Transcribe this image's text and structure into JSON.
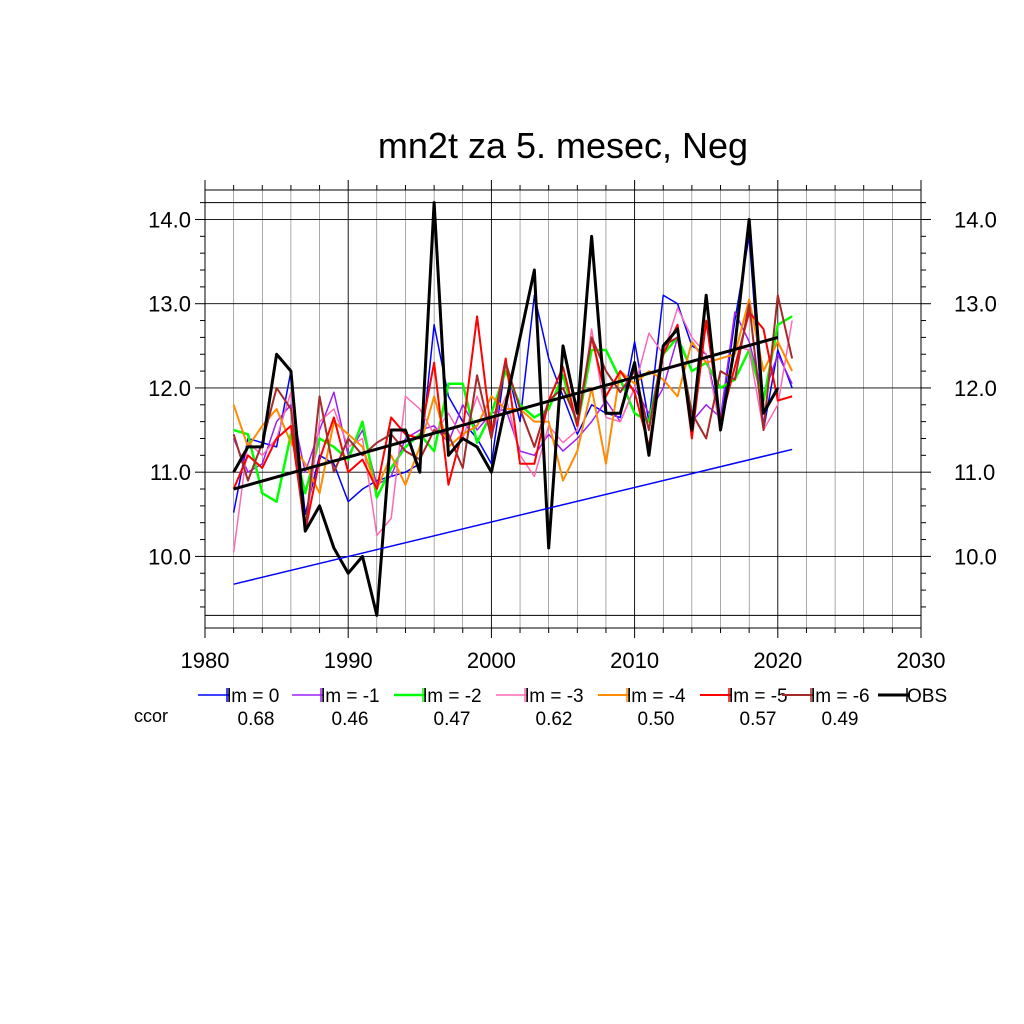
{
  "chart_data": {
    "type": "line",
    "title": "mn2t za 5. mesec, Neg",
    "xlabel": "",
    "ylabel": "",
    "xlim": [
      1980,
      2030
    ],
    "ylim": [
      9.3,
      14.2
    ],
    "x_ticks": [
      1980,
      1990,
      2000,
      2010,
      2020,
      2030
    ],
    "y_ticks": [
      10.0,
      11.0,
      12.0,
      13.0,
      14.0
    ],
    "y_tick_labels": [
      "10.0",
      "11.0",
      "12.0",
      "13.0",
      "14.0"
    ],
    "grid": true,
    "legend_position": "bottom",
    "ccor_label": "ccor",
    "years": [
      1982,
      1983,
      1984,
      1985,
      1986,
      1987,
      1988,
      1989,
      1990,
      1991,
      1992,
      1993,
      1994,
      1995,
      1996,
      1997,
      1998,
      1999,
      2000,
      2001,
      2002,
      2003,
      2004,
      2005,
      2006,
      2007,
      2008,
      2009,
      2010,
      2011,
      2012,
      2013,
      2014,
      2015,
      2016,
      2017,
      2018,
      2019,
      2020,
      2021
    ],
    "series": [
      {
        "name": "lm = 0",
        "color": "#0000ff",
        "width": 1.5,
        "ccor": "0.68",
        "values": [
          10.52,
          11.4,
          11.35,
          11.3,
          12.2,
          10.5,
          11.2,
          11.1,
          10.65,
          10.8,
          10.9,
          10.95,
          11.0,
          11.1,
          12.75,
          11.9,
          11.6,
          11.4,
          11.1,
          12.3,
          11.6,
          13.1,
          12.35,
          11.9,
          11.45,
          11.8,
          11.7,
          11.65,
          12.55,
          11.6,
          13.1,
          13.0,
          12.5,
          12.4,
          11.6,
          12.8,
          13.8,
          11.5,
          12.45,
          12.0
        ]
      },
      {
        "name": "lm = -1",
        "color": "#a020f0",
        "width": 1.5,
        "ccor": "0.46",
        "values": [
          11.4,
          11.0,
          11.1,
          11.6,
          11.8,
          11.0,
          11.5,
          11.95,
          11.2,
          11.5,
          10.85,
          10.95,
          11.4,
          11.5,
          11.55,
          11.35,
          11.8,
          11.5,
          11.7,
          11.75,
          11.25,
          11.2,
          11.45,
          11.25,
          11.4,
          11.6,
          11.85,
          11.6,
          12.0,
          11.7,
          12.0,
          12.6,
          11.6,
          11.8,
          11.65,
          12.9,
          12.55,
          11.9,
          12.4,
          12.05
        ]
      },
      {
        "name": "lm = -2",
        "color": "#00ff00",
        "width": 2.5,
        "ccor": "0.47",
        "values": [
          11.5,
          11.45,
          10.75,
          10.65,
          11.45,
          10.75,
          11.4,
          11.3,
          11.15,
          11.6,
          10.7,
          11.05,
          11.3,
          11.45,
          11.25,
          12.05,
          12.05,
          11.35,
          11.7,
          12.2,
          11.8,
          11.65,
          11.75,
          12.15,
          11.55,
          12.45,
          12.45,
          12.1,
          11.7,
          11.6,
          12.4,
          12.6,
          12.2,
          12.3,
          12.0,
          12.1,
          12.45,
          11.85,
          12.75,
          12.85
        ]
      },
      {
        "name": "lm = -3",
        "color": "#ff69b4",
        "width": 1.5,
        "ccor": "0.62",
        "values": [
          10.05,
          11.35,
          11.2,
          11.4,
          11.95,
          10.3,
          11.6,
          11.75,
          11.3,
          11.4,
          10.25,
          10.45,
          11.9,
          11.75,
          11.45,
          11.7,
          11.4,
          11.9,
          11.45,
          11.9,
          11.2,
          10.95,
          11.55,
          11.35,
          11.5,
          12.7,
          11.65,
          11.6,
          12.0,
          12.65,
          12.4,
          12.95,
          12.6,
          12.4,
          11.5,
          12.5,
          12.45,
          11.5,
          11.8,
          12.8
        ]
      },
      {
        "name": "lm = -4",
        "color": "#ff8c00",
        "width": 2,
        "ccor": "0.50",
        "values": [
          11.8,
          11.3,
          11.55,
          11.75,
          11.35,
          11.1,
          10.75,
          11.6,
          11.45,
          11.3,
          10.8,
          11.2,
          10.85,
          11.3,
          11.9,
          11.3,
          11.45,
          11.55,
          11.9,
          11.75,
          11.75,
          11.6,
          11.6,
          10.9,
          11.25,
          12.0,
          11.1,
          12.2,
          12.05,
          12.2,
          12.1,
          11.9,
          12.55,
          12.3,
          12.35,
          12.4,
          13.05,
          12.2,
          12.55,
          12.2
        ]
      },
      {
        "name": "lm = -5",
        "color": "#ff0000",
        "width": 2,
        "ccor": "0.57",
        "values": [
          10.8,
          11.2,
          11.05,
          11.4,
          11.55,
          10.3,
          11.15,
          11.65,
          11.0,
          11.15,
          10.8,
          11.65,
          11.45,
          11.4,
          12.3,
          10.85,
          11.5,
          12.85,
          11.45,
          12.35,
          11.1,
          11.1,
          11.85,
          12.25,
          11.55,
          12.6,
          11.9,
          12.2,
          11.95,
          11.3,
          12.4,
          12.75,
          11.4,
          12.8,
          11.6,
          12.25,
          12.9,
          12.7,
          11.85,
          11.9
        ]
      },
      {
        "name": "lm = -6",
        "color": "#a52a2a",
        "width": 2,
        "ccor": "0.49",
        "values": [
          11.45,
          10.9,
          11.35,
          12.0,
          11.75,
          10.3,
          11.9,
          11.0,
          11.4,
          11.2,
          11.35,
          11.45,
          11.25,
          11.15,
          11.5,
          11.45,
          11.05,
          12.15,
          11.4,
          12.3,
          11.75,
          11.3,
          11.85,
          12.0,
          11.6,
          12.6,
          12.2,
          11.95,
          12.2,
          11.5,
          12.5,
          12.6,
          11.7,
          11.4,
          12.2,
          12.1,
          13.0,
          11.5,
          13.1,
          12.35
        ]
      },
      {
        "name": "OBS",
        "color": "#000000",
        "width": 3,
        "ccor": "",
        "values": [
          11.0,
          11.3,
          11.3,
          12.4,
          12.2,
          10.3,
          10.6,
          10.1,
          9.8,
          10.0,
          9.3,
          11.5,
          11.5,
          11.0,
          14.2,
          11.2,
          11.4,
          11.3,
          11.0,
          11.8,
          12.6,
          13.4,
          10.1,
          12.5,
          11.7,
          13.8,
          11.7,
          11.7,
          12.3,
          11.2,
          12.5,
          12.7,
          11.5,
          13.1,
          11.5,
          12.5,
          14.0,
          11.7,
          12.0
        ]
      }
    ],
    "trends": [
      {
        "name": "OBS trend",
        "color": "#000000",
        "width": 3,
        "x": [
          1982,
          2020
        ],
        "values": [
          10.8,
          12.6
        ]
      },
      {
        "name": "lm = 0 trend",
        "color": "#0000ff",
        "width": 1.5,
        "x": [
          1982,
          2021
        ],
        "values": [
          9.67,
          11.27
        ]
      }
    ]
  }
}
